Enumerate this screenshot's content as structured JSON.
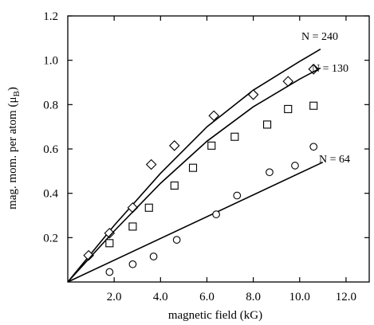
{
  "chart_data": {
    "type": "scatter",
    "xlabel": "magnetic field (kG)",
    "ylabel_main": "mag. mom. per atom (",
    "ylabel_sym": "μ",
    "ylabel_sub": "B",
    "ylabel_close": ")",
    "xlim": [
      0,
      13
    ],
    "ylim": [
      0,
      1.2
    ],
    "x_ticks": [
      2.0,
      4.0,
      6.0,
      8.0,
      10.0,
      12.0
    ],
    "x_tick_labels": [
      "2.0",
      "4.0",
      "6.0",
      "8.0",
      "10.0",
      "12.0"
    ],
    "y_ticks": [
      0.2,
      0.4,
      0.6,
      0.8,
      1.0,
      1.2
    ],
    "y_tick_labels": [
      "0.2",
      "0.4",
      "0.6",
      "0.8",
      "1.0",
      "1.2"
    ],
    "grid": false,
    "legend": "none",
    "series": [
      {
        "name": "N = 240",
        "marker": "diamond",
        "points": [
          [
            0.9,
            0.12
          ],
          [
            1.8,
            0.22
          ],
          [
            2.8,
            0.335
          ],
          [
            3.6,
            0.53
          ],
          [
            4.6,
            0.615
          ],
          [
            6.3,
            0.75
          ],
          [
            8.0,
            0.845
          ],
          [
            9.5,
            0.905
          ],
          [
            10.6,
            0.96
          ]
        ],
        "curve": [
          [
            0,
            0
          ],
          [
            2,
            0.255
          ],
          [
            4,
            0.49
          ],
          [
            6,
            0.7
          ],
          [
            8,
            0.865
          ],
          [
            10,
            0.995
          ],
          [
            10.9,
            1.05
          ]
        ]
      },
      {
        "name": "N = 130",
        "marker": "square",
        "points": [
          [
            1.8,
            0.175
          ],
          [
            2.8,
            0.25
          ],
          [
            3.5,
            0.335
          ],
          [
            4.6,
            0.435
          ],
          [
            5.4,
            0.515
          ],
          [
            6.2,
            0.615
          ],
          [
            7.2,
            0.655
          ],
          [
            8.6,
            0.71
          ],
          [
            9.5,
            0.78
          ],
          [
            10.6,
            0.795
          ]
        ],
        "curve": [
          [
            0,
            0
          ],
          [
            2,
            0.23
          ],
          [
            4,
            0.445
          ],
          [
            6,
            0.635
          ],
          [
            8,
            0.79
          ],
          [
            10,
            0.915
          ],
          [
            10.9,
            0.965
          ]
        ]
      },
      {
        "name": "N = 64",
        "marker": "circle",
        "points": [
          [
            1.8,
            0.045
          ],
          [
            2.8,
            0.08
          ],
          [
            3.7,
            0.115
          ],
          [
            4.7,
            0.19
          ],
          [
            6.4,
            0.305
          ],
          [
            7.3,
            0.39
          ],
          [
            8.7,
            0.495
          ],
          [
            9.8,
            0.525
          ],
          [
            10.6,
            0.61
          ]
        ],
        "curve": [
          [
            0,
            0
          ],
          [
            11.0,
            0.54
          ]
        ]
      }
    ],
    "annotations": [
      {
        "text": "N = 240",
        "series": 0
      },
      {
        "text": "N = 130",
        "series": 1
      },
      {
        "text": "N = 64",
        "series": 2
      }
    ]
  }
}
